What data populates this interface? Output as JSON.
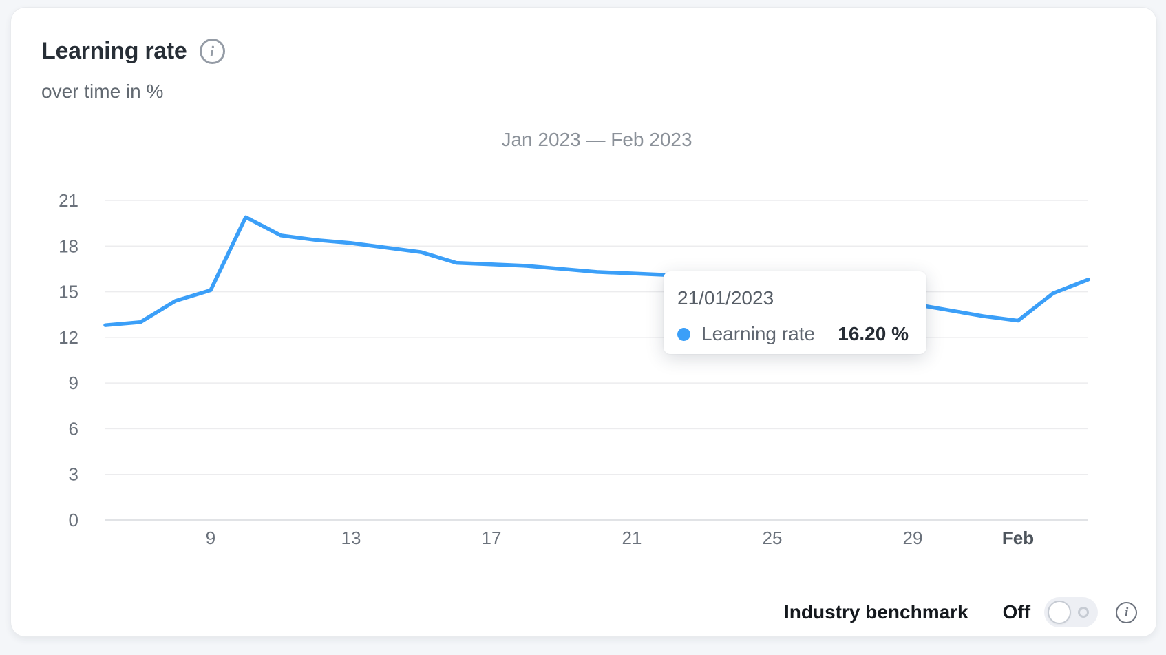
{
  "card": {
    "title": "Learning rate",
    "subtitle": "over time in %"
  },
  "chart_data": {
    "type": "line",
    "title": "Jan 2023 — Feb 2023",
    "series_name": "Learning rate",
    "unit": "%",
    "x": [
      "06/01/2023",
      "07/01/2023",
      "08/01/2023",
      "09/01/2023",
      "10/01/2023",
      "11/01/2023",
      "12/01/2023",
      "13/01/2023",
      "14/01/2023",
      "15/01/2023",
      "16/01/2023",
      "17/01/2023",
      "18/01/2023",
      "19/01/2023",
      "20/01/2023",
      "21/01/2023",
      "22/01/2023",
      "23/01/2023",
      "24/01/2023",
      "25/01/2023",
      "26/01/2023",
      "27/01/2023",
      "28/01/2023",
      "29/01/2023",
      "30/01/2023",
      "31/01/2023",
      "01/02/2023",
      "02/02/2023",
      "03/02/2023"
    ],
    "values": [
      12.8,
      13.0,
      14.4,
      15.1,
      19.9,
      18.7,
      18.4,
      18.2,
      17.9,
      17.6,
      16.9,
      16.8,
      16.7,
      16.5,
      16.3,
      16.2,
      16.1,
      15.8,
      15.5,
      15.2,
      14.9,
      14.6,
      14.4,
      14.2,
      13.8,
      13.4,
      13.1,
      14.9,
      15.8
    ],
    "xticks": [
      {
        "label": "9",
        "index": 3,
        "bold": false
      },
      {
        "label": "13",
        "index": 7,
        "bold": false
      },
      {
        "label": "17",
        "index": 11,
        "bold": false
      },
      {
        "label": "21",
        "index": 15,
        "bold": false
      },
      {
        "label": "25",
        "index": 19,
        "bold": false
      },
      {
        "label": "29",
        "index": 23,
        "bold": false
      },
      {
        "label": "Feb",
        "index": 26,
        "bold": true
      }
    ],
    "ylim": [
      0,
      21
    ],
    "ytick_step": 3,
    "grid": "horizontal",
    "legend_position": "none",
    "line_color": "#3b9ff8"
  },
  "tooltip": {
    "date": "21/01/2023",
    "series_label": "Learning rate",
    "value": "16.20 %",
    "dot_color": "#3b9ff8"
  },
  "benchmark": {
    "label": "Industry benchmark",
    "state": "Off",
    "toggle_state": "off"
  }
}
